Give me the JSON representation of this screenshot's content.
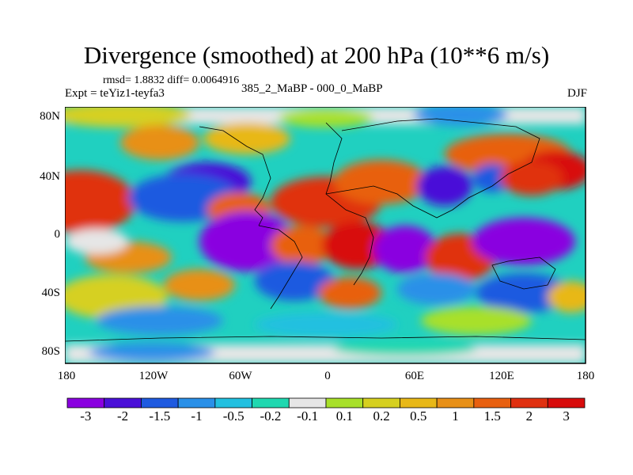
{
  "title": "Divergence (smoothed) at 200 hPa (10**6 m/s)",
  "stats": "rmsd= 1.8832 diff= 0.0064916",
  "experiment": "Expt = teYiz1-teyfa3",
  "comparison": "385_2_MaBP - 000_0_MaBP",
  "season": "DJF",
  "y_ticks": [
    "80N",
    "40N",
    "0",
    "40S",
    "80S"
  ],
  "x_ticks": [
    "180",
    "120W",
    "60W",
    "0",
    "60E",
    "120E",
    "180"
  ],
  "colorbar": {
    "labels": [
      "-3",
      "-2",
      "-1.5",
      "-1",
      "-0.5",
      "-0.2",
      "-0.1",
      "0.1",
      "0.2",
      "0.5",
      "1",
      "1.5",
      "2",
      "3"
    ],
    "colors": [
      "#8a00e0",
      "#4a10d8",
      "#1e5ae0",
      "#2a90e8",
      "#22c0e0",
      "#20d8b0",
      "#e6e6e6",
      "#a8e02a",
      "#d6d020",
      "#e8b818",
      "#e89018",
      "#e86010",
      "#e03010",
      "#d80c0c"
    ]
  }
}
